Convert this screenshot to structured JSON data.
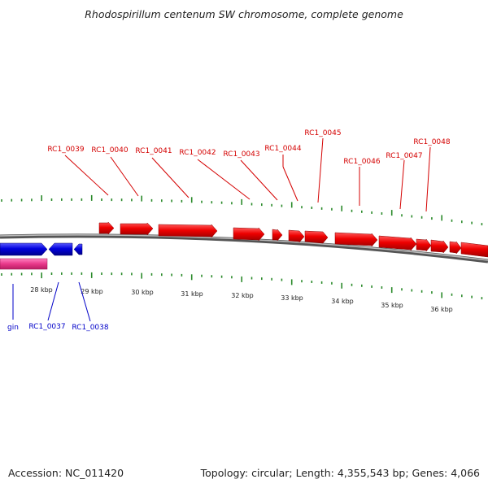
{
  "title": "Rhodospirillum centenum SW chromosome, complete genome",
  "footer": {
    "accession": "Accession: NC_011420",
    "summary": "Topology: circular; Length: 4,355,543 bp; Genes: 4,066"
  },
  "kbp_labels": [
    "28 kbp",
    "29 kbp",
    "30 kbp",
    "31 kbp",
    "32 kbp",
    "33 kbp",
    "34 kbp",
    "35 kbp",
    "36 kbp"
  ],
  "top_genes": [
    "RC1_0039",
    "RC1_0040",
    "RC1_0041",
    "RC1_0042",
    "RC1_0043",
    "RC1_0044",
    "RC1_0045",
    "RC1_0046",
    "RC1_0047",
    "RC1_0048"
  ],
  "bottom_genes": [
    "gin",
    "RC1_0037",
    "RC1_0038"
  ],
  "colors": {
    "forward_gene": "#ee0000",
    "reverse_gene": "#0000dd",
    "pink_feature": "#e8388a",
    "backbone": "#777777",
    "ticks": "#2a8a2a",
    "label_red": "#d40000",
    "label_blue": "#0000c8"
  }
}
